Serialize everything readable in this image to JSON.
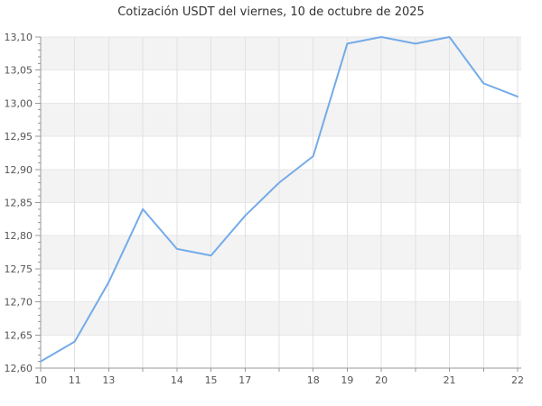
{
  "chart_data": {
    "type": "line",
    "title": "Cotización USDT del viernes, 10 de octubre de 2025",
    "x_tick_labels": [
      "10",
      "11",
      "13",
      "",
      "14",
      "15",
      "17",
      "",
      "18",
      "19",
      "20",
      "",
      "21",
      "",
      "22"
    ],
    "values": [
      12.61,
      12.64,
      12.73,
      12.84,
      12.78,
      12.77,
      12.83,
      12.88,
      12.92,
      13.09,
      13.1,
      13.09,
      13.1,
      13.03,
      13.01
    ],
    "ylim": [
      12.6,
      13.1
    ],
    "y_tick_step": 0.05,
    "y_minor_tick_step": 0.01,
    "y_tick_labels": [
      "13,10",
      "13,05",
      "13,00",
      "12,95",
      "12,90",
      "12,85",
      "12,80",
      "12,75",
      "12,70",
      "12,65",
      "12,60"
    ],
    "decimal_separator": ",",
    "grid": true,
    "legend": "none",
    "colors": {
      "line": "#74ABE8",
      "band": "#f3f3f3",
      "x_grid": "#e2e2e2",
      "y_grid": "#e7e7e7",
      "axis": "#999999",
      "tick_label": "#555555",
      "title": "#333333",
      "background": "#ffffff"
    }
  }
}
